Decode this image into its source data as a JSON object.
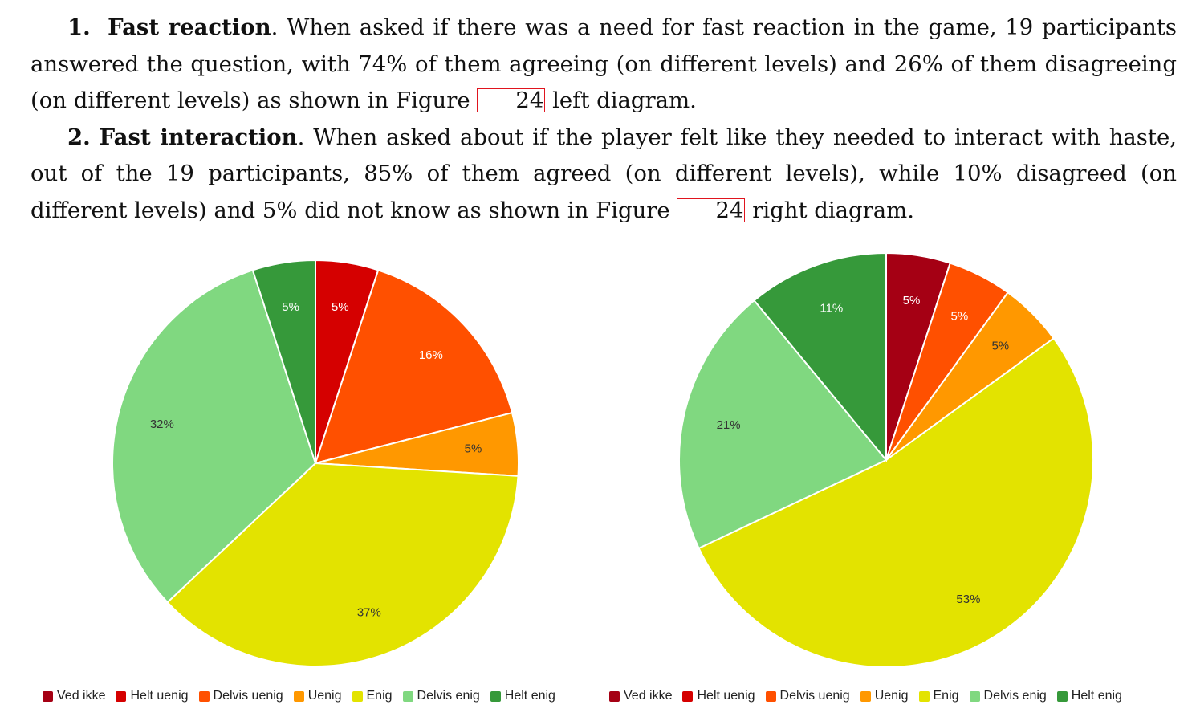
{
  "paragraphs": [
    {
      "number": "1.",
      "heading": "Fast reaction",
      "text_before": ". When asked if there was a need for fast reaction in the game, 19 participants answered the question, with 74% of them agreeing (on different levels) and 26% of them disagreeing (on different levels) as shown in Figure ",
      "figure_ref": "24",
      "text_after": " left diagram."
    },
    {
      "number": "2.",
      "heading": "Fast interaction",
      "text_before": ". When asked about if the player felt like they needed to interact with haste, out of the 19 participants, 85% of them agreed (on different levels), while 10% disagreed (on different levels) and 5% did not know as shown in Figure ",
      "figure_ref": "24",
      "text_after": " right diagram."
    }
  ],
  "chart_data": [
    {
      "type": "pie",
      "categories": [
        "Ved ikke",
        "Helt uenig",
        "Delvis uenig",
        "Uenig",
        "Enig",
        "Delvis enig",
        "Helt enig"
      ],
      "values": [
        0,
        5,
        16,
        5,
        37,
        32,
        5
      ],
      "labels": [
        "",
        "5%",
        "16%",
        "5%",
        "37%",
        "32%",
        "5%"
      ],
      "colors": [
        "#a50014",
        "#d50000",
        "#ff5000",
        "#ff9800",
        "#e3e300",
        "#80d880",
        "#36993a"
      ],
      "legend_position": "bottom"
    },
    {
      "type": "pie",
      "categories": [
        "Ved ikke",
        "Helt uenig",
        "Delvis uenig",
        "Uenig",
        "Enig",
        "Delvis enig",
        "Helt enig"
      ],
      "values": [
        5,
        0,
        5,
        5,
        53,
        21,
        11
      ],
      "labels": [
        "5%",
        "",
        "5%",
        "5%",
        "53%",
        "21%",
        "11%"
      ],
      "colors": [
        "#a50014",
        "#d50000",
        "#ff5000",
        "#ff9800",
        "#e3e300",
        "#80d880",
        "#36993a"
      ],
      "legend_position": "bottom"
    }
  ]
}
